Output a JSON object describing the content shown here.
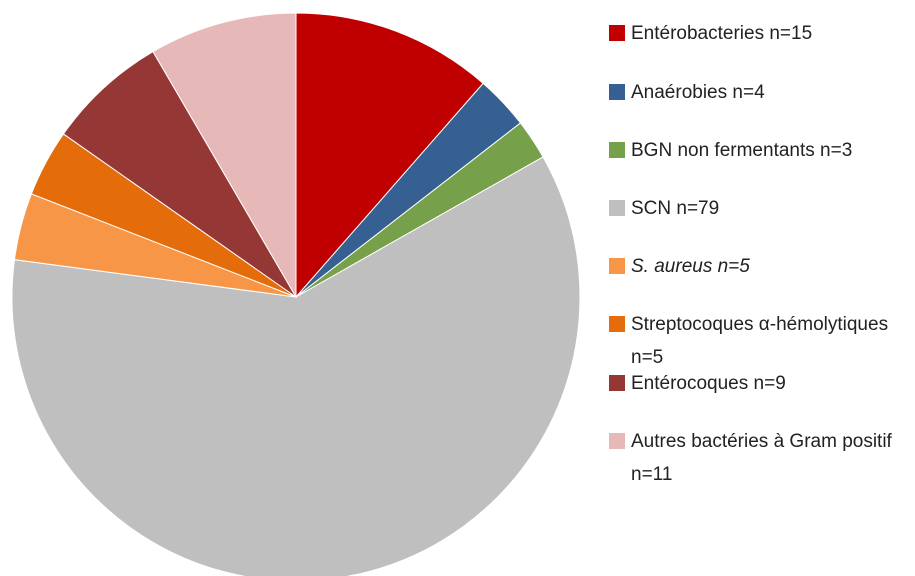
{
  "chart_data": {
    "type": "pie",
    "categories": [
      "Entérobacteries n=15",
      "Anaérobies n=4",
      "BGN non fermentants n=3",
      "SCN n=79",
      "S. aureus n=5",
      "Streptocoques α-hémolytiques n=5",
      "Entérocoques n=9",
      "Autres bactéries à Gram positif n=11"
    ],
    "values": [
      15,
      4,
      3,
      79,
      5,
      5,
      9,
      11
    ],
    "colors": [
      "#c00000",
      "#376092",
      "#77a04b",
      "#bfbfbf",
      "#f79646",
      "#e46c0a",
      "#953735",
      "#e6b9b8"
    ]
  }
}
